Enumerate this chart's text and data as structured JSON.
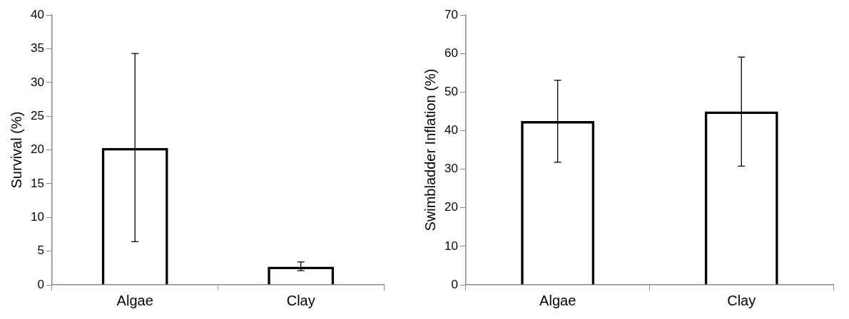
{
  "chart_data": [
    {
      "type": "bar",
      "categories": [
        "Algae",
        "Clay"
      ],
      "values": [
        20.3,
        2.7
      ],
      "colors": [
        "#000000",
        "#000000"
      ],
      "errors": [
        [
          6.4,
          34.3
        ],
        [
          2.1,
          3.4
        ]
      ],
      "ylabel": "Survival (%)",
      "ylim": [
        0,
        40
      ],
      "yticks": [
        0,
        5,
        10,
        15,
        20,
        25,
        30,
        35,
        40
      ],
      "grid": false,
      "legend": false
    },
    {
      "type": "bar",
      "categories": [
        "Algae",
        "Clay"
      ],
      "values": [
        42.5,
        45
      ],
      "colors": [
        "#000000",
        "#000000"
      ],
      "errors": [
        [
          31.8,
          53.1
        ],
        [
          30.8,
          59.1
        ]
      ],
      "ylabel": "Swimbladder Inflation (%)",
      "ylim": [
        0,
        70
      ],
      "yticks": [
        0,
        10,
        20,
        30,
        40,
        50,
        60,
        70
      ],
      "grid": false,
      "legend": false
    }
  ]
}
